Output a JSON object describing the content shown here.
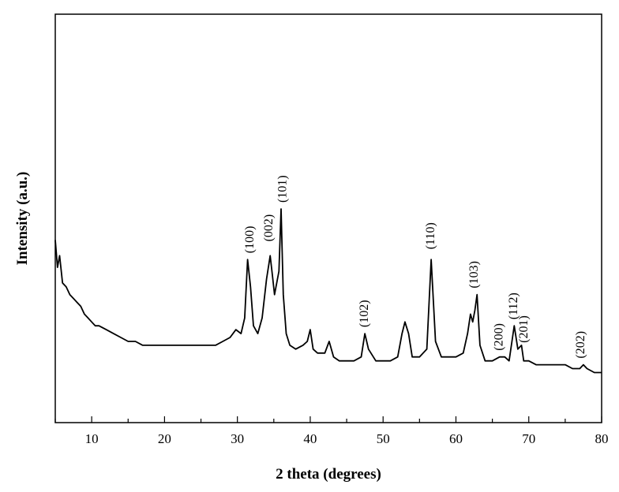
{
  "chart_data": {
    "type": "line",
    "title": "",
    "xlabel": "2 theta (degrees)",
    "ylabel": "Intensity (a.u.)",
    "xlim": [
      5,
      80
    ],
    "ylim": [
      0,
      100
    ],
    "x_ticks": [
      10,
      20,
      30,
      40,
      50,
      60,
      70,
      80
    ],
    "x_tick_labels": [
      "10",
      "20",
      "30",
      "40",
      "50",
      "60",
      "70",
      "80"
    ],
    "y_tick_labels_shown": false,
    "grid": false,
    "legend": "none",
    "line_color": "#000000",
    "series": [
      {
        "x": [
          5.0,
          5.3,
          5.6,
          6.0,
          6.5,
          7.0,
          7.5,
          8.0,
          8.5,
          9.0,
          9.5,
          10.0,
          10.5,
          11.0,
          12.0,
          13.0,
          14.0,
          15.0,
          16.0,
          17.0,
          18.0,
          19.0,
          20.0,
          21.0,
          22.0,
          23.0,
          24.0,
          25.0,
          26.0,
          27.0,
          28.0,
          29.0,
          29.8,
          30.5,
          31.0,
          31.4,
          31.8,
          32.2,
          32.8,
          33.4,
          34.0,
          34.5,
          34.8,
          35.1,
          35.7,
          36.0,
          36.3,
          36.7,
          37.2,
          38.0,
          39.0,
          39.6,
          40.0,
          40.4,
          41.0,
          42.0,
          42.6,
          43.2,
          44.0,
          45.0,
          46.0,
          47.0,
          47.5,
          48.0,
          49.0,
          50.0,
          51.0,
          52.0,
          52.6,
          53.0,
          53.5,
          54.0,
          55.0,
          56.0,
          56.6,
          57.2,
          58.0,
          59.0,
          60.0,
          61.0,
          61.6,
          62.0,
          62.3,
          62.6,
          62.9,
          63.3,
          64.0,
          65.0,
          66.0,
          66.7,
          67.3,
          68.0,
          68.5,
          69.0,
          69.3,
          70.0,
          71.0,
          72.0,
          73.0,
          74.0,
          75.0,
          76.0,
          77.0,
          77.5,
          78.0,
          79.0,
          80.0
        ],
        "y": [
          42,
          35,
          38,
          31,
          30,
          28,
          27,
          26,
          25,
          23,
          22,
          21,
          20,
          20,
          19,
          18,
          17,
          16,
          16,
          15,
          15,
          15,
          15,
          15,
          15,
          15,
          15,
          15,
          15,
          15,
          16,
          17,
          19,
          18,
          22,
          37,
          30,
          20,
          18,
          22,
          32,
          38,
          33,
          28,
          34,
          50,
          28,
          18,
          15,
          14,
          15,
          16,
          19,
          14,
          13,
          13,
          16,
          12,
          11,
          11,
          11,
          12,
          18,
          14,
          11,
          11,
          11,
          12,
          18,
          21,
          18,
          12,
          12,
          14,
          37,
          16,
          12,
          12,
          12,
          13,
          18,
          23,
          21,
          24,
          28,
          15,
          11,
          11,
          12,
          12,
          11,
          20,
          14,
          15,
          11,
          11,
          10,
          10,
          10,
          10,
          10,
          9,
          9,
          10,
          9,
          8,
          8
        ]
      }
    ],
    "annotations": [
      {
        "text": "(100)",
        "x": 31.8,
        "y": 37
      },
      {
        "text": "(002)",
        "x": 34.4,
        "y": 40
      },
      {
        "text": "(101)",
        "x": 36.3,
        "y": 50
      },
      {
        "text": "(102)",
        "x": 47.5,
        "y": 18
      },
      {
        "text": "(110)",
        "x": 56.6,
        "y": 38
      },
      {
        "text": "(103)",
        "x": 62.6,
        "y": 28
      },
      {
        "text": "(200)",
        "x": 66.0,
        "y": 12
      },
      {
        "text": "(112)",
        "x": 68.0,
        "y": 20
      },
      {
        "text": "(201)",
        "x": 69.4,
        "y": 14
      },
      {
        "text": "(202)",
        "x": 77.2,
        "y": 10
      }
    ]
  }
}
